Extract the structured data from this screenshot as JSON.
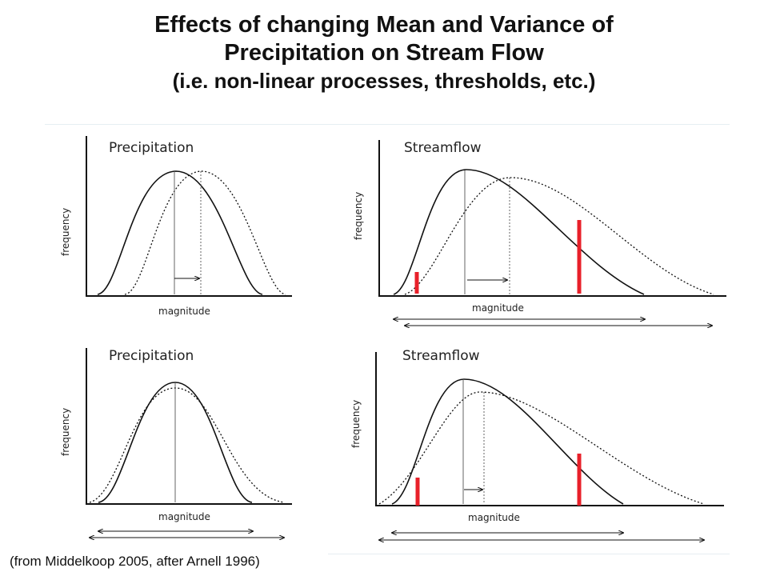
{
  "title": {
    "line1": "Effects of changing Mean and Variance of",
    "line2": "Precipitation on Stream Flow",
    "line3": "(i.e. non-linear processes, thresholds, etc.)"
  },
  "panels": [
    {
      "title": "Precipitation",
      "xlabel": "magnitude",
      "ylabel": "frequency"
    },
    {
      "title": "Streamflow",
      "xlabel": "magnitude",
      "ylabel": "frequency"
    },
    {
      "title": "Precipitation",
      "xlabel": "magnitude",
      "ylabel": "frequency"
    },
    {
      "title": "Streamflow",
      "xlabel": "magnitude",
      "ylabel": "frequency"
    }
  ],
  "caption": "(from Middelkoop 2005, after Arnell 1996)",
  "colors": {
    "threshold": "#e8202a",
    "line": "#111111"
  }
}
